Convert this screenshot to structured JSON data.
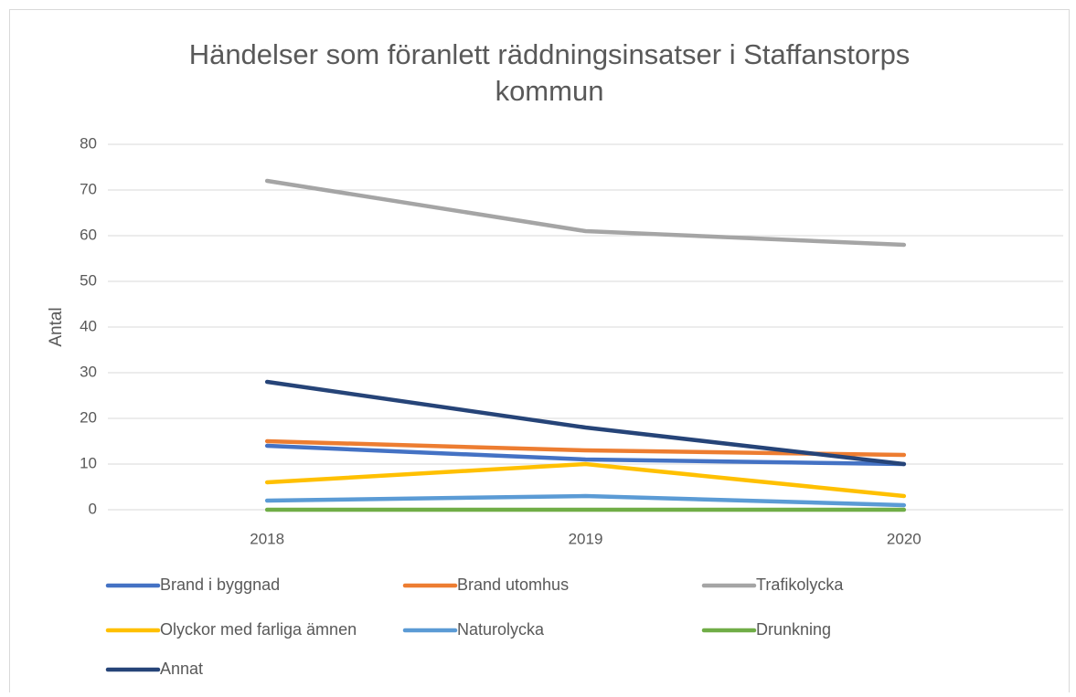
{
  "chart_data": {
    "type": "line",
    "title": "Händelser som föranlett räddningsinsatser i Staffanstorps kommun",
    "y_label": "Antal",
    "categories": [
      "2018",
      "2019",
      "2020"
    ],
    "series": [
      {
        "name": "Brand i byggnad",
        "color": "#4472c4",
        "values": [
          14,
          11,
          10
        ]
      },
      {
        "name": "Brand utomhus",
        "color": "#ed7d31",
        "values": [
          15,
          13,
          12
        ]
      },
      {
        "name": "Trafikolycka",
        "color": "#a5a5a5",
        "values": [
          72,
          61,
          58
        ]
      },
      {
        "name": "Olyckor med farliga ämnen",
        "color": "#ffc000",
        "values": [
          6,
          10,
          3
        ]
      },
      {
        "name": "Naturolycka",
        "color": "#5b9bd5",
        "values": [
          2,
          3,
          1
        ]
      },
      {
        "name": "Drunkning",
        "color": "#70ad47",
        "values": [
          0,
          0,
          0
        ]
      },
      {
        "name": "Annat",
        "color": "#264478",
        "values": [
          28,
          18,
          10
        ]
      }
    ],
    "ylim": [
      0,
      80
    ],
    "yticks": [
      0,
      10,
      20,
      30,
      40,
      50,
      60,
      70,
      80
    ],
    "grid": true,
    "legend": "bottom"
  }
}
